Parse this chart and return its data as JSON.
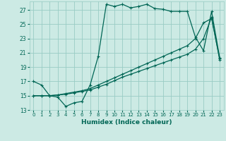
{
  "xlabel": "Humidex (Indice chaleur)",
  "bg_color": "#cceae4",
  "grid_color": "#99ccc4",
  "line_color": "#006655",
  "xlim": [
    -0.5,
    23.5
  ],
  "ylim": [
    13,
    28.2
  ],
  "yticks": [
    13,
    15,
    17,
    19,
    21,
    23,
    25,
    27
  ],
  "xticks": [
    0,
    1,
    2,
    3,
    4,
    5,
    6,
    7,
    8,
    9,
    10,
    11,
    12,
    13,
    14,
    15,
    16,
    17,
    18,
    19,
    20,
    21,
    22,
    23
  ],
  "series1_x": [
    0,
    1,
    2,
    3,
    4,
    5,
    6,
    7,
    8,
    9,
    10,
    11,
    12,
    13,
    14,
    15,
    16,
    17,
    18,
    19,
    20,
    21,
    22,
    23
  ],
  "series1_y": [
    17.0,
    16.5,
    15.0,
    14.8,
    13.5,
    14.0,
    14.2,
    16.5,
    20.5,
    27.8,
    27.5,
    27.8,
    27.3,
    27.5,
    27.8,
    27.2,
    27.1,
    26.8,
    26.8,
    26.8,
    23.2,
    21.3,
    26.8,
    20.3
  ],
  "series2_x": [
    0,
    1,
    2,
    3,
    4,
    5,
    6,
    7,
    8,
    9,
    10,
    11,
    12,
    13,
    14,
    15,
    16,
    17,
    18,
    19,
    20,
    21,
    22,
    23
  ],
  "series2_y": [
    15.0,
    15.0,
    15.0,
    15.1,
    15.3,
    15.5,
    15.7,
    16.0,
    16.5,
    17.0,
    17.5,
    18.0,
    18.5,
    19.0,
    19.5,
    20.0,
    20.5,
    21.0,
    21.5,
    22.0,
    23.0,
    25.2,
    25.8,
    20.2
  ],
  "series3_x": [
    0,
    1,
    2,
    3,
    4,
    5,
    6,
    7,
    8,
    9,
    10,
    11,
    12,
    13,
    14,
    15,
    16,
    17,
    18,
    19,
    20,
    21,
    22,
    23
  ],
  "series3_y": [
    15.0,
    15.0,
    15.0,
    15.1,
    15.2,
    15.4,
    15.6,
    15.8,
    16.2,
    16.6,
    17.1,
    17.6,
    18.0,
    18.4,
    18.8,
    19.2,
    19.6,
    20.0,
    20.4,
    20.8,
    21.5,
    23.0,
    26.0,
    20.0
  ]
}
